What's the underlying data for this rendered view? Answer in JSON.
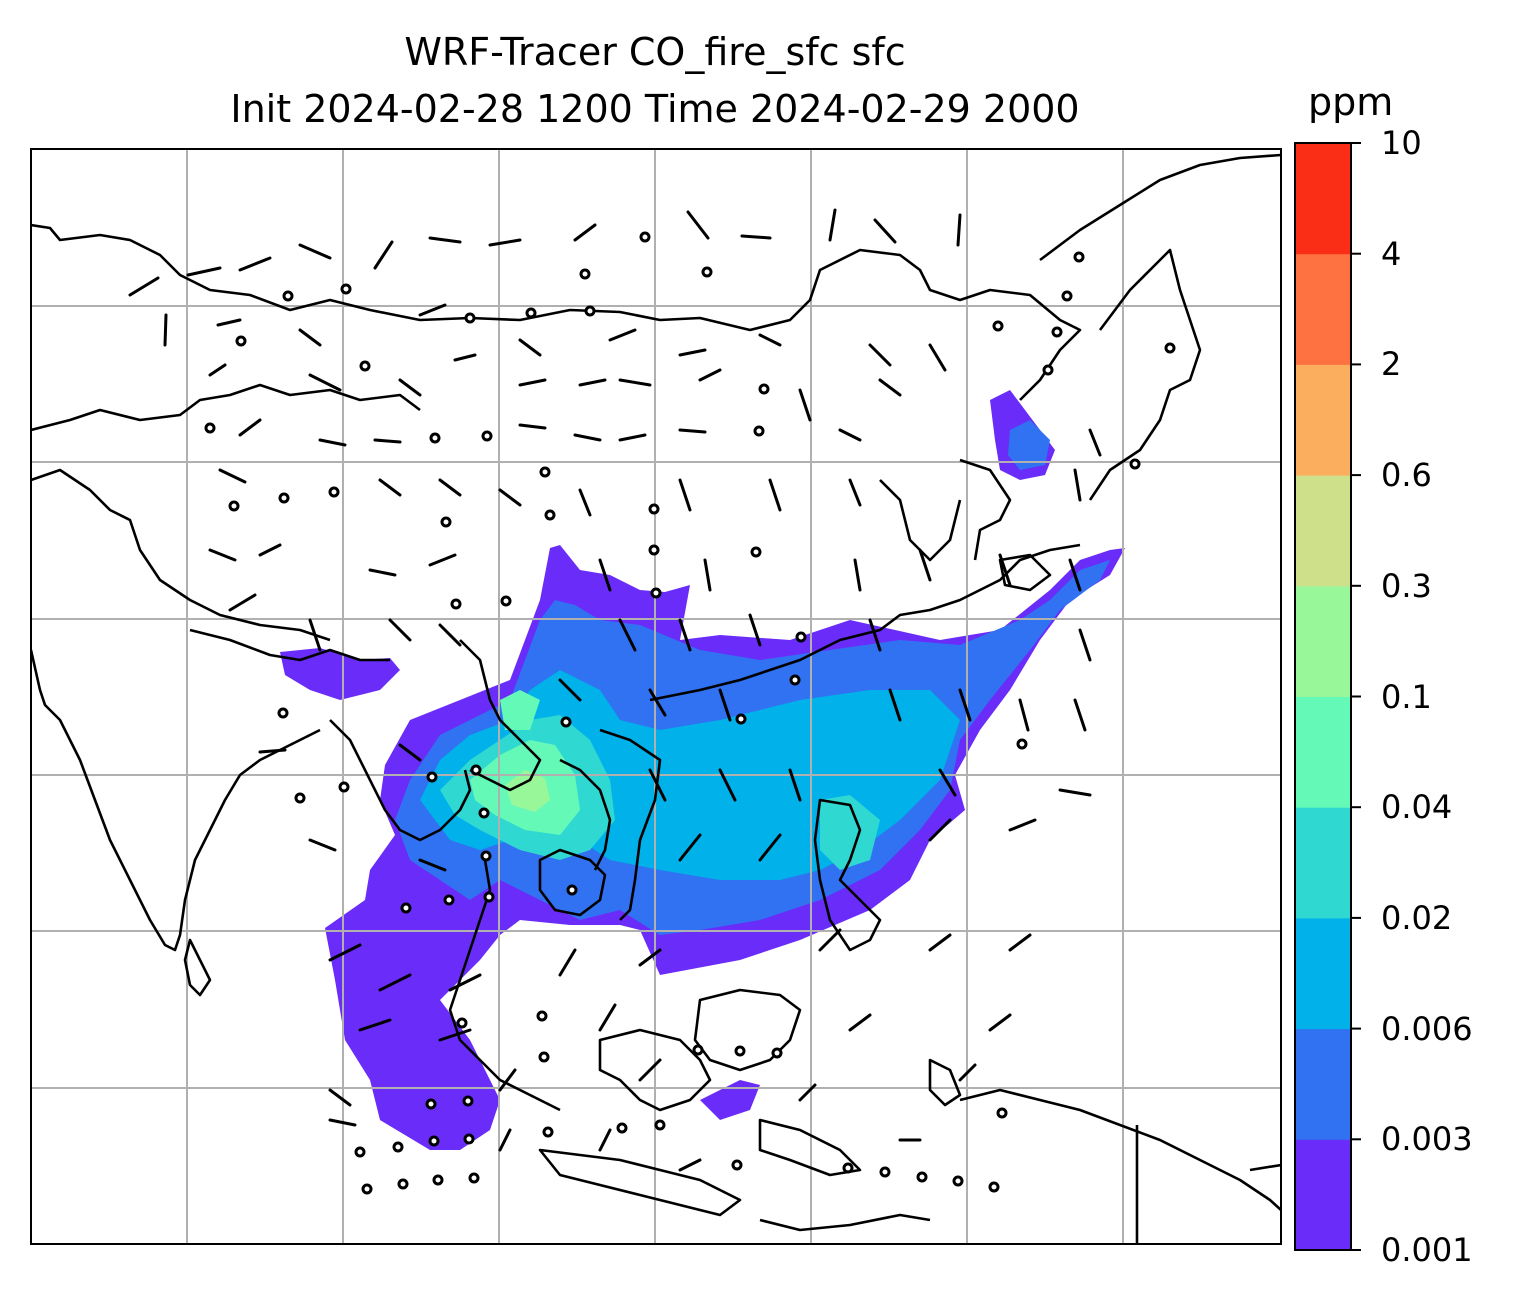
{
  "title": {
    "line1": "WRF-Tracer CO_fire_sfc sfc",
    "line2": "Init 2024-02-28 1200 Time 2024-02-29 2000"
  },
  "colorbar": {
    "unit": "ppm",
    "levels": [
      "0.001",
      "0.003",
      "0.006",
      "0.02",
      "0.04",
      "0.1",
      "0.3",
      "0.6",
      "2",
      "4",
      "10"
    ],
    "colors": [
      "#6a2cf8",
      "#3172f2",
      "#00b1ea",
      "#2fd9d2",
      "#65f9b8",
      "#98f798",
      "#cfe08a",
      "#fcae5f",
      "#fd7240",
      "#fa2d17"
    ]
  },
  "map": {
    "background": "#ffffff",
    "coastline_color": "#000000",
    "grid_color": "#b0b0b0"
  }
}
